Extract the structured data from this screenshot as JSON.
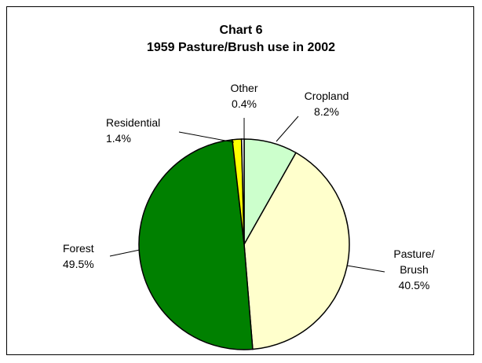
{
  "chart_data": {
    "type": "pie",
    "title": "Chart 6",
    "subtitle": "1959 Pasture/Brush use in 2002",
    "categories": [
      "Cropland",
      "Pasture/\nBrush",
      "Forest",
      "Residential",
      "Other"
    ],
    "values": [
      8.2,
      40.5,
      49.5,
      1.4,
      0.4
    ],
    "value_labels": [
      "8.2%",
      "40.5%",
      "49.5%",
      "1.4%",
      "0.4%"
    ],
    "colors": [
      "#ccffcc",
      "#ffffcc",
      "#008000",
      "#ffff00",
      "#ffffff"
    ]
  }
}
